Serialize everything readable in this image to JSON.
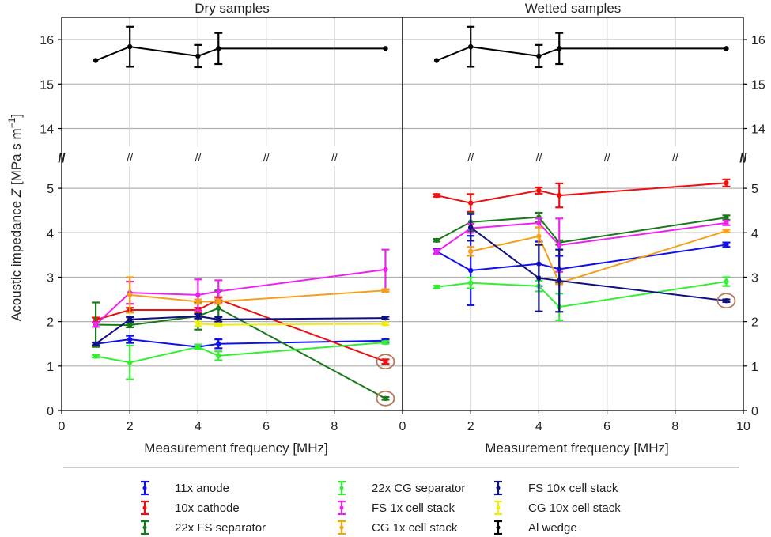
{
  "figure": {
    "ylabel_prefix": "Acoustic impedance ",
    "ylabel_var": "Z",
    "ylabel_unit": " [MPa s m",
    "ylabel_exp": "−1",
    "ylabel_close": "]"
  },
  "chart_data": [
    {
      "type": "line",
      "title": "Dry samples",
      "xlabel": "Measurement frequency [MHz]",
      "xlim": [
        0,
        10
      ],
      "xticks": [
        0,
        2,
        4,
        6,
        8
      ],
      "broken_y_axis": true,
      "ylim_lower": [
        0,
        5.5
      ],
      "ylim_upper": [
        13.6,
        16.5
      ],
      "yticks_lower": [
        0,
        1,
        2,
        3,
        4,
        5
      ],
      "yticks_upper": [
        14,
        15,
        16
      ],
      "grid": true,
      "series": [
        {
          "name": "11x anode",
          "color": "#1010ee",
          "x": [
            1,
            2,
            4,
            4.6,
            9.5
          ],
          "y": [
            1.5,
            1.6,
            1.43,
            1.5,
            1.57
          ],
          "err": [
            0.03,
            0.08,
            0.05,
            0.1,
            0.03
          ]
        },
        {
          "name": "10x cathode",
          "color": "#ee1010",
          "x": [
            1,
            2,
            4,
            4.6,
            9.5
          ],
          "y": [
            2.04,
            2.26,
            2.26,
            2.5,
            1.1
          ],
          "err": [
            0.05,
            0.05,
            0.05,
            0.05,
            0.05
          ],
          "circled": [
            4
          ]
        },
        {
          "name": "22x FS separator",
          "color": "#1a7a1a",
          "x": [
            1,
            2,
            4,
            4.6,
            9.5
          ],
          "y": [
            1.93,
            1.92,
            2.12,
            2.3,
            0.27
          ],
          "err": [
            0.5,
            0.05,
            0.3,
            0.4,
            0.03
          ],
          "circled": [
            4
          ]
        },
        {
          "name": "22x CG separator",
          "color": "#33ee33",
          "x": [
            1,
            2,
            4,
            4.6,
            9.5
          ],
          "y": [
            1.22,
            1.08,
            1.43,
            1.23,
            1.53
          ],
          "err": [
            0.03,
            0.38,
            0.05,
            0.1,
            0.03
          ]
        },
        {
          "name": "FS 1x cell stack",
          "color": "#ee22ee",
          "x": [
            1,
            2,
            4,
            4.6,
            9.5
          ],
          "y": [
            1.93,
            2.65,
            2.6,
            2.68,
            3.17
          ],
          "err": [
            0.05,
            0.25,
            0.35,
            0.25,
            0.45
          ]
        },
        {
          "name": "CG 1x cell stack",
          "color": "#f5a01a",
          "x": [
            2,
            4,
            4.6,
            9.5
          ],
          "y": [
            2.6,
            2.45,
            2.45,
            2.7
          ],
          "err": [
            0.4,
            0.05,
            0.05,
            0.03
          ]
        },
        {
          "name": "FS 10x cell stack",
          "color": "#101080",
          "x": [
            1,
            2,
            4,
            4.6,
            9.5
          ],
          "y": [
            1.5,
            2.05,
            2.12,
            2.05,
            2.08
          ],
          "err": [
            0.03,
            0.05,
            0.05,
            0.05,
            0.03
          ]
        },
        {
          "name": "CG 10x cell stack",
          "color": "#eeee10",
          "x": [
            4,
            4.6,
            9.5
          ],
          "y": [
            1.95,
            1.93,
            1.95
          ],
          "err": [
            0.05,
            0.03,
            0.03
          ]
        },
        {
          "name": "Al wedge",
          "color": "#000000",
          "x": [
            1,
            2,
            4,
            4.6,
            9.5
          ],
          "y": [
            15.53,
            15.84,
            15.63,
            15.8,
            15.8
          ],
          "err": [
            0.0,
            0.45,
            0.25,
            0.35,
            0.0
          ]
        }
      ]
    },
    {
      "type": "line",
      "title": "Wetted samples",
      "xlabel": "Measurement frequency [MHz]",
      "xlim": [
        0,
        10
      ],
      "xticks": [
        0,
        2,
        4,
        6,
        8,
        10
      ],
      "broken_y_axis": true,
      "ylim_lower": [
        0,
        5.5
      ],
      "ylim_upper": [
        13.6,
        16.5
      ],
      "yticks_lower": [
        0,
        1,
        2,
        3,
        4,
        5
      ],
      "yticks_upper": [
        14,
        15,
        16
      ],
      "grid": true,
      "series": [
        {
          "name": "11x anode",
          "color": "#1010ee",
          "x": [
            1,
            2,
            4,
            4.6,
            9.5
          ],
          "y": [
            3.58,
            3.15,
            3.3,
            3.18,
            3.73
          ],
          "err": [
            0.05,
            0.78,
            0.5,
            0.3,
            0.05
          ]
        },
        {
          "name": "10x cathode",
          "color": "#ee1010",
          "x": [
            1,
            2,
            4,
            4.6,
            9.5
          ],
          "y": [
            4.84,
            4.67,
            4.95,
            4.84,
            5.12
          ],
          "err": [
            0.03,
            0.2,
            0.07,
            0.27,
            0.08
          ]
        },
        {
          "name": "22x FS separator",
          "color": "#1a7a1a",
          "x": [
            1,
            2,
            4,
            4.6,
            9.5
          ],
          "y": [
            3.83,
            4.24,
            4.35,
            3.78,
            4.34
          ],
          "err": [
            0.03,
            0.2,
            0.1,
            0.05,
            0.05
          ]
        },
        {
          "name": "22x CG separator",
          "color": "#33ee33",
          "x": [
            1,
            2,
            4,
            4.6,
            9.5
          ],
          "y": [
            2.78,
            2.87,
            2.8,
            2.33,
            2.9
          ],
          "err": [
            0.03,
            0.12,
            0.12,
            0.3,
            0.1
          ]
        },
        {
          "name": "FS 1x cell stack",
          "color": "#ee22ee",
          "x": [
            1,
            2,
            4,
            4.6,
            9.5
          ],
          "y": [
            3.57,
            4.1,
            4.22,
            3.72,
            4.22
          ],
          "err": [
            0.05,
            0.1,
            0.1,
            0.6,
            0.05
          ]
        },
        {
          "name": "CG 1x cell stack",
          "color": "#f5a01a",
          "x": [
            2,
            4,
            4.6,
            9.5
          ],
          "y": [
            3.58,
            3.92,
            2.87,
            4.04
          ],
          "err": [
            0.1,
            0.2,
            0.03,
            0.03
          ]
        },
        {
          "name": "FS 10x cell stack",
          "color": "#101080",
          "x": [
            2,
            4,
            4.6,
            9.5
          ],
          "y": [
            4.12,
            2.98,
            2.92,
            2.47
          ],
          "err": [
            0.3,
            0.75,
            0.7,
            0.03
          ],
          "circled": [
            3
          ]
        },
        {
          "name": "Al wedge",
          "color": "#000000",
          "x": [
            1,
            2,
            4,
            4.6,
            9.5
          ],
          "y": [
            15.53,
            15.84,
            15.63,
            15.8,
            15.8
          ],
          "err": [
            0.0,
            0.45,
            0.25,
            0.35,
            0.0
          ]
        }
      ]
    }
  ],
  "legend": [
    {
      "label": "11x anode",
      "color": "#1010ee"
    },
    {
      "label": "10x cathode",
      "color": "#ee1010"
    },
    {
      "label": "22x FS separator",
      "color": "#1a7a1a"
    },
    {
      "label": "22x CG separator",
      "color": "#33ee33"
    },
    {
      "label": "FS 1x cell stack",
      "color": "#ee22ee"
    },
    {
      "label": "CG 1x cell stack",
      "color": "#f5a01a"
    },
    {
      "label": "FS 10x cell stack",
      "color": "#101080"
    },
    {
      "label": "CG 10x cell stack",
      "color": "#eeee10"
    },
    {
      "label": "Al wedge",
      "color": "#000000"
    }
  ],
  "highlight_color": "#b87a5a"
}
